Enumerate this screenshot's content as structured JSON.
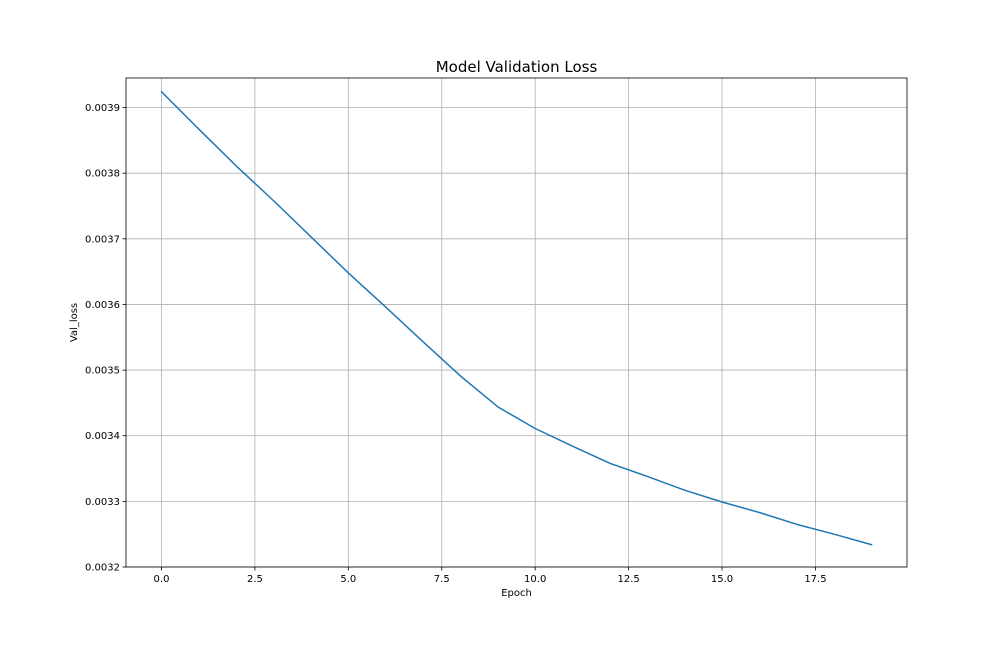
{
  "chart_data": {
    "type": "line",
    "title": "Model Validation Loss",
    "xlabel": "Epoch",
    "ylabel": "Val_loss",
    "xlim": [
      -0.95,
      19.95
    ],
    "ylim": [
      0.0032,
      0.003945
    ],
    "x_ticks": [
      0.0,
      2.5,
      5.0,
      7.5,
      10.0,
      12.5,
      15.0,
      17.5
    ],
    "x_tick_labels": [
      "0.0",
      "2.5",
      "5.0",
      "7.5",
      "10.0",
      "12.5",
      "15.0",
      "17.5"
    ],
    "y_ticks": [
      0.0032,
      0.0033,
      0.0034,
      0.0035,
      0.0036,
      0.0037,
      0.0038,
      0.0039
    ],
    "y_tick_labels": [
      "0.0032",
      "0.0033",
      "0.0034",
      "0.0035",
      "0.0036",
      "0.0037",
      "0.0038",
      "0.0039"
    ],
    "grid": true,
    "line_color": "#1f77b4",
    "grid_color": "#b0b0b0",
    "series": [
      {
        "x": [
          0,
          1,
          2,
          3,
          4,
          5,
          6,
          7,
          8,
          9,
          10,
          11,
          12,
          13,
          14,
          15,
          16,
          17,
          18,
          19
        ],
        "values": [
          0.003924,
          0.003867,
          0.003811,
          0.003758,
          0.003703,
          0.003648,
          0.003596,
          0.003543,
          0.003491,
          0.003444,
          0.003411,
          0.003384,
          0.003358,
          0.003338,
          0.003317,
          0.003299,
          0.003283,
          0.003265,
          0.00325,
          0.003234
        ]
      }
    ]
  }
}
